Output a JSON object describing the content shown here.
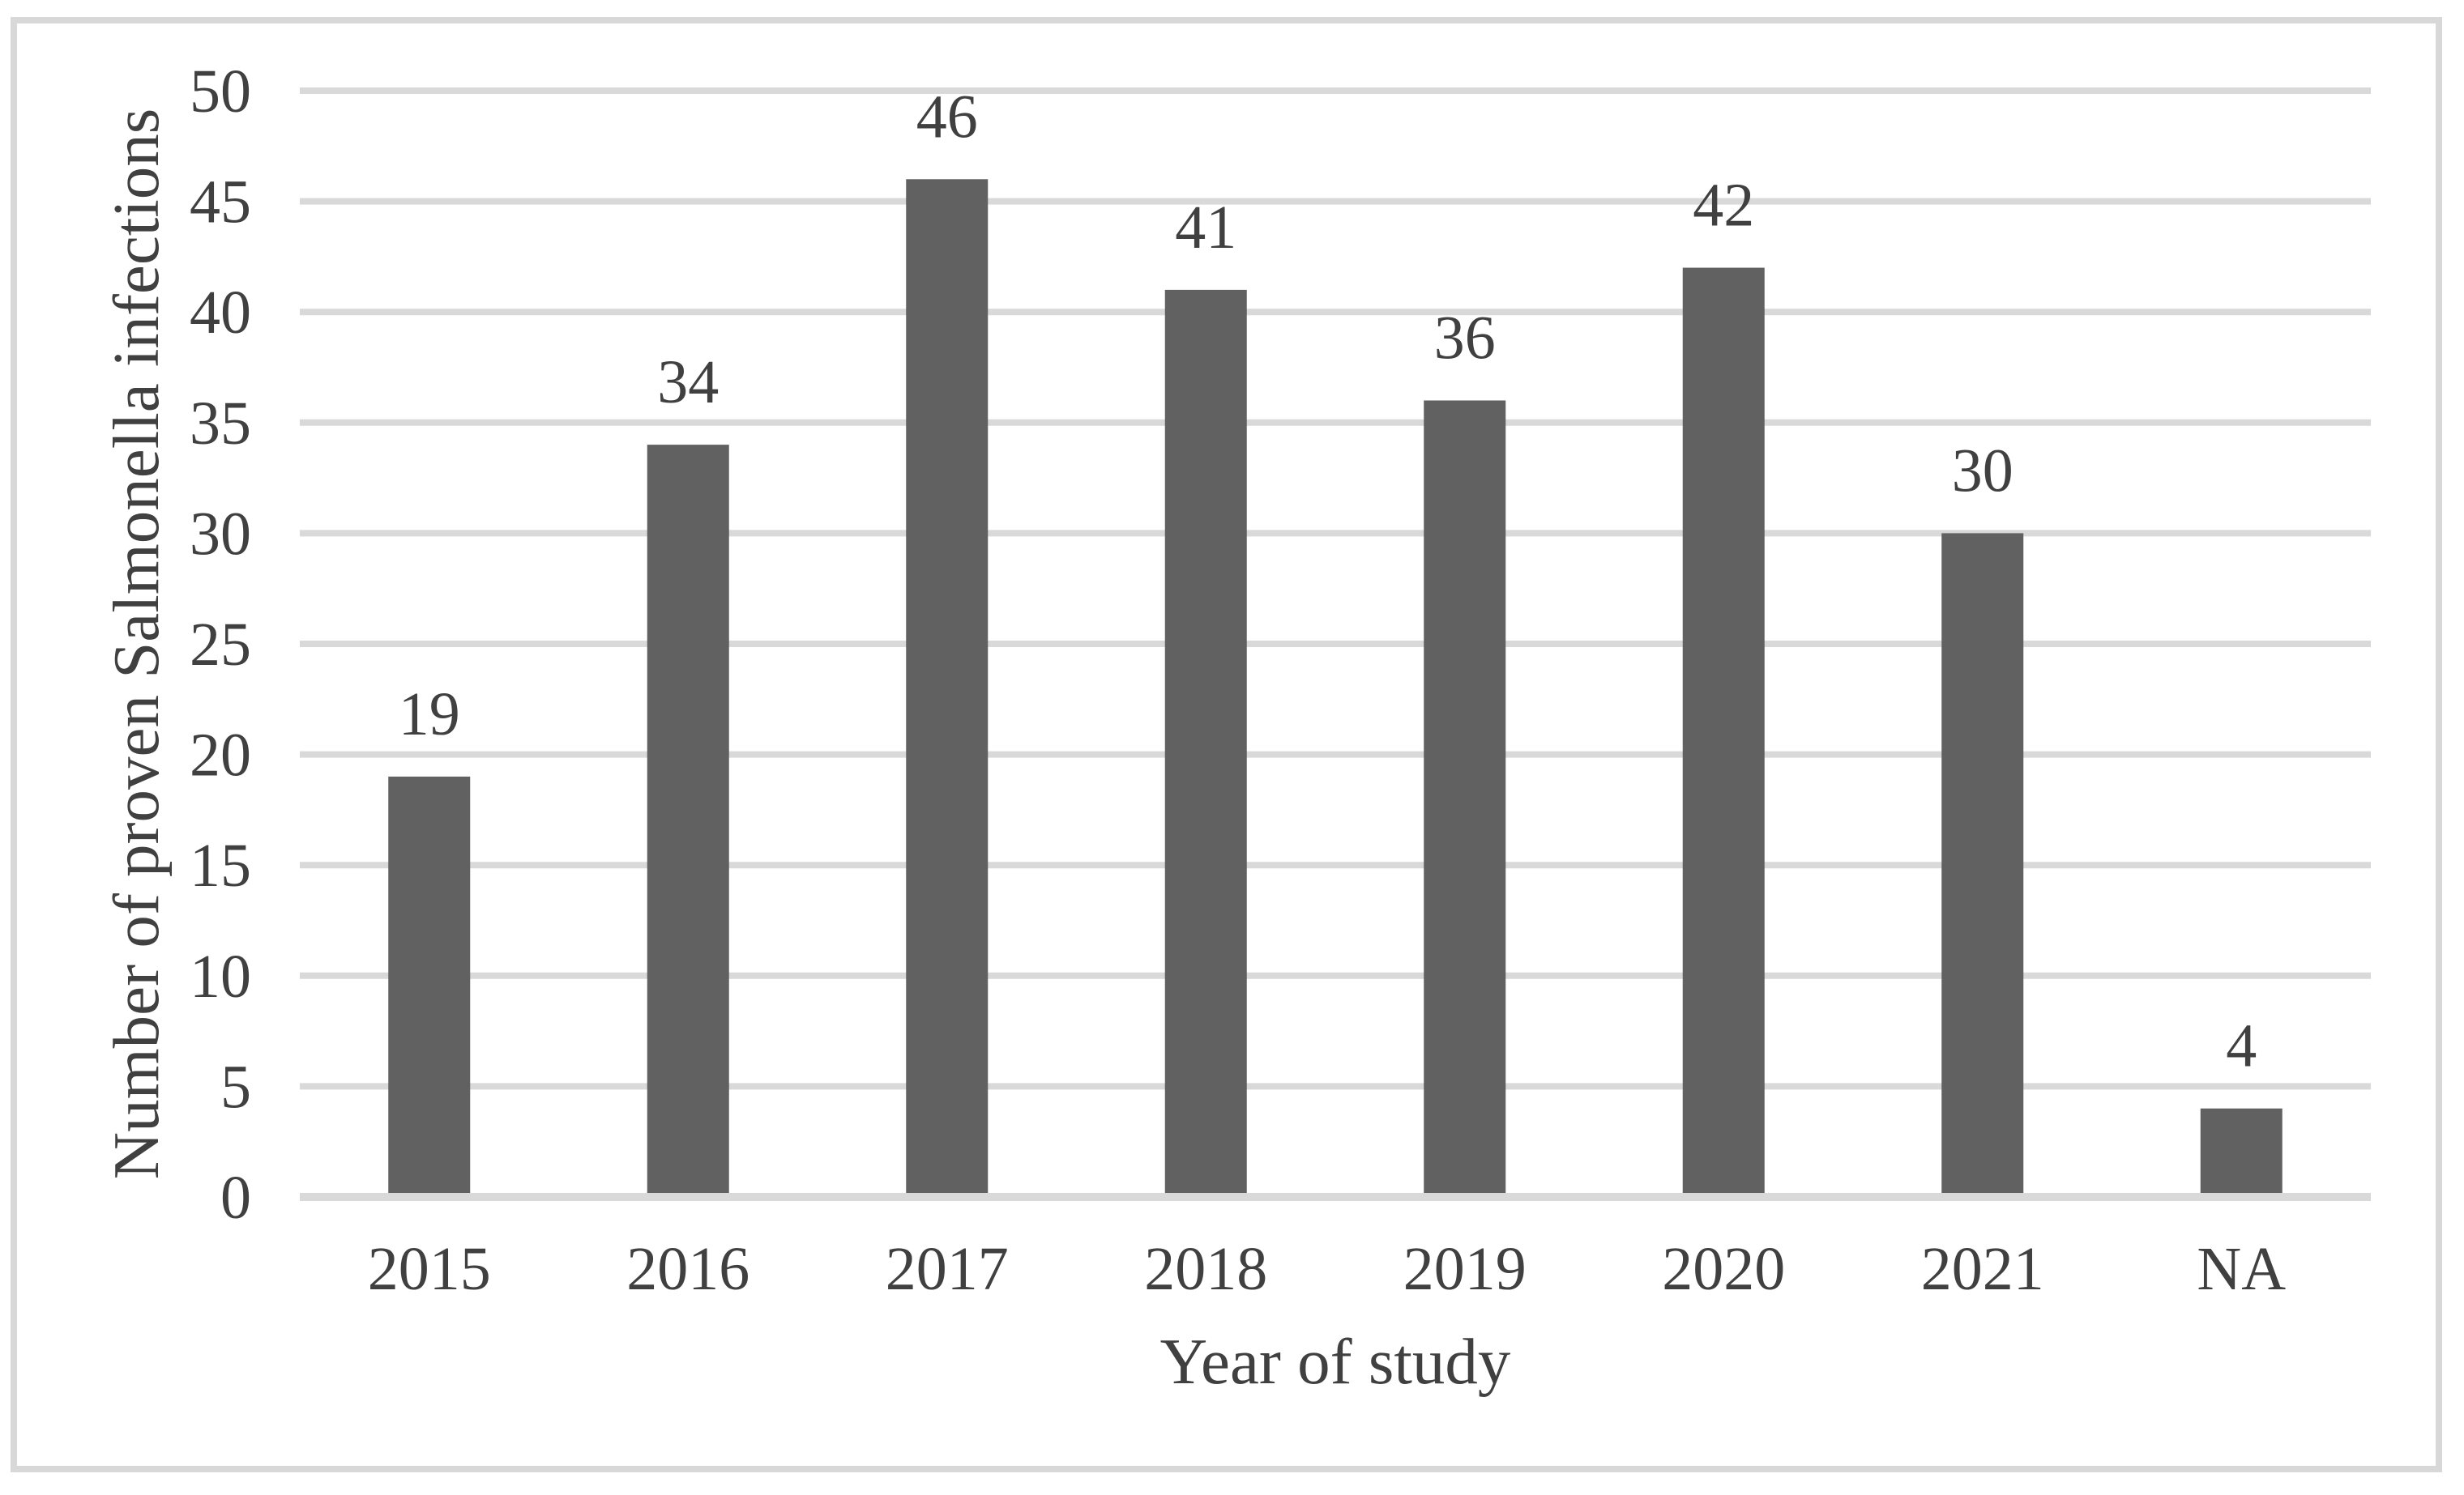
{
  "chart_data": {
    "type": "bar",
    "title": "",
    "categories": [
      "2015",
      "2016",
      "2017",
      "2018",
      "2019",
      "2020",
      "2021",
      "NA"
    ],
    "values": [
      19,
      34,
      46,
      41,
      36,
      42,
      30,
      4
    ],
    "series_name": "Number of proven Salmonella infections",
    "xlabel": "Year of study",
    "ylabel": "Number of proven Salmonella infections",
    "ylim": [
      0,
      50
    ],
    "ytick_step": 5,
    "yticks": [
      0,
      5,
      10,
      15,
      20,
      25,
      30,
      35,
      40,
      45,
      50
    ],
    "data_labels": [
      19,
      34,
      46,
      41,
      36,
      42,
      30,
      4
    ],
    "grid": "horizontal-only",
    "legend_position": "none",
    "colors": {
      "bar_fill": "#616161",
      "gridline": "#d9d9d9",
      "axis_line": "#d9d9d9",
      "label_text": "#404040",
      "frame_border": "#d8d8d8",
      "background": "#ffffff"
    }
  }
}
